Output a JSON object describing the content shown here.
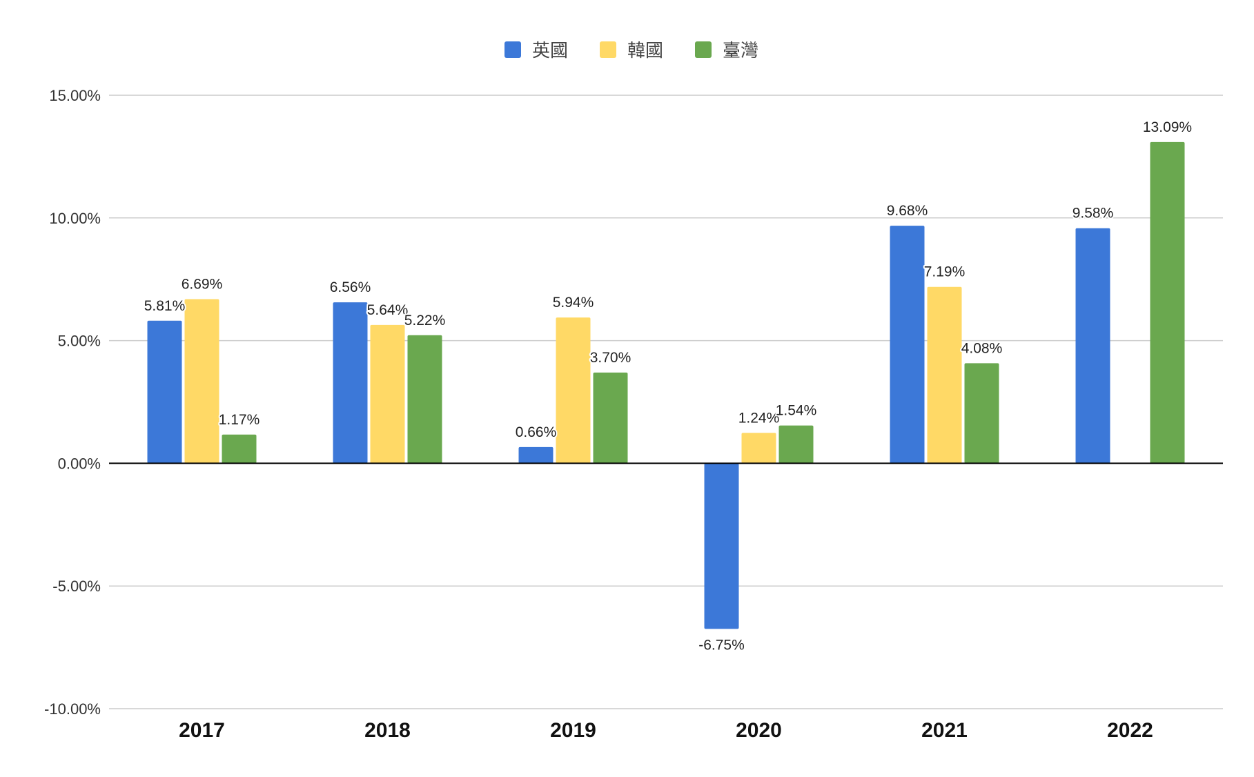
{
  "chart_data": {
    "type": "bar",
    "title": "",
    "xlabel": "",
    "ylabel": "",
    "categories": [
      "2017",
      "2018",
      "2019",
      "2020",
      "2021",
      "2022"
    ],
    "series": [
      {
        "name": "英國",
        "color": "#3c78d8",
        "values": [
          5.81,
          6.56,
          0.66,
          -6.75,
          9.68,
          9.58
        ],
        "labels": [
          "5.81%",
          "6.56%",
          "0.66%",
          "-6.75%",
          "9.68%",
          "9.58%"
        ]
      },
      {
        "name": "韓國",
        "color": "#ffd966",
        "values": [
          6.69,
          5.64,
          5.94,
          1.24,
          7.19,
          null
        ],
        "labels": [
          "6.69%",
          "5.64%",
          "5.94%",
          "1.24%",
          "7.19%",
          ""
        ]
      },
      {
        "name": "臺灣",
        "color": "#6aa84f",
        "values": [
          1.17,
          5.22,
          3.7,
          1.54,
          4.08,
          13.09
        ],
        "labels": [
          "1.17%",
          "5.22%",
          "3.70%",
          "1.54%",
          "4.08%",
          "13.09%"
        ]
      }
    ],
    "ylim": [
      -10,
      15
    ],
    "yticks": [
      15,
      10,
      5,
      0,
      -5,
      -10
    ],
    "ytick_labels": [
      "15.00%",
      "10.00%",
      "5.00%",
      "0.00%",
      "-5.00%",
      "-10.00%"
    ],
    "grid": true,
    "legend_position": "top-center",
    "gridline_color": "#cccccc",
    "zero_line_color": "#000000"
  }
}
